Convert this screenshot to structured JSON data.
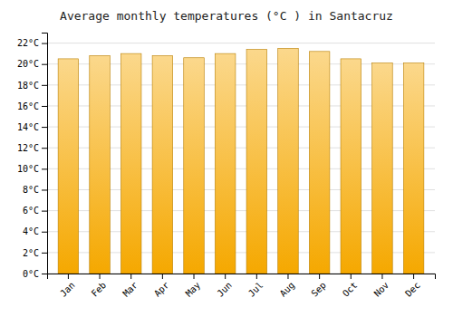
{
  "chart_data": {
    "type": "bar",
    "title": "Average monthly temperatures (°C ) in Santacruz",
    "categories": [
      "Jan",
      "Feb",
      "Mar",
      "Apr",
      "May",
      "Jun",
      "Jul",
      "Aug",
      "Sep",
      "Oct",
      "Nov",
      "Dec"
    ],
    "values": [
      20.5,
      20.8,
      21.0,
      20.8,
      20.6,
      21.0,
      21.4,
      21.5,
      21.2,
      20.5,
      20.1,
      20.1
    ],
    "color": "#F5A800",
    "ylim": [
      0,
      23
    ],
    "yticks": [
      {
        "value": 0,
        "label": "0°C"
      },
      {
        "value": 2,
        "label": "2°C"
      },
      {
        "value": 4,
        "label": "4°C"
      },
      {
        "value": 6,
        "label": "6°C"
      },
      {
        "value": 8,
        "label": "8°C"
      },
      {
        "value": 10,
        "label": "10°C"
      },
      {
        "value": 12,
        "label": "12°C"
      },
      {
        "value": 14,
        "label": "14°C"
      },
      {
        "value": 16,
        "label": "16°C"
      },
      {
        "value": 18,
        "label": "18°C"
      },
      {
        "value": 20,
        "label": "20°C"
      },
      {
        "value": 22,
        "label": "22°C"
      }
    ],
    "grid": true
  }
}
